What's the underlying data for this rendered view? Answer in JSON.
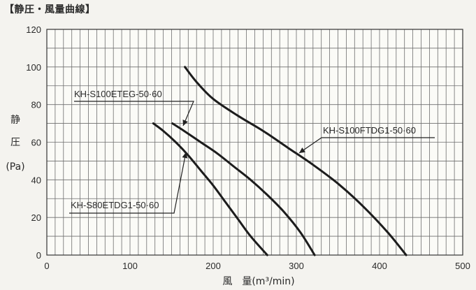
{
  "chart_data": {
    "type": "line",
    "title": "【静圧・風量曲線】",
    "xlabel": "風　量(m³/min)",
    "ylabel_lines": [
      "静",
      "圧",
      "(Pa)"
    ],
    "xlim": [
      0,
      500
    ],
    "ylim": [
      0,
      120
    ],
    "x_ticks": [
      0,
      100,
      200,
      300,
      400,
      500
    ],
    "y_ticks": [
      0,
      20,
      40,
      60,
      80,
      100,
      120
    ],
    "grid": true,
    "series": [
      {
        "name": "KH-S100FTDG1-50·60",
        "points": [
          [
            166,
            100
          ],
          [
            180,
            92
          ],
          [
            200,
            83
          ],
          [
            230,
            74
          ],
          [
            260,
            66
          ],
          [
            290,
            57
          ],
          [
            320,
            48
          ],
          [
            350,
            38
          ],
          [
            380,
            26
          ],
          [
            410,
            12
          ],
          [
            432,
            0
          ]
        ]
      },
      {
        "name": "KH-S100ETEG-50·60",
        "points": [
          [
            151,
            70
          ],
          [
            165,
            66
          ],
          [
            185,
            60
          ],
          [
            205,
            54
          ],
          [
            225,
            47
          ],
          [
            245,
            40
          ],
          [
            265,
            32
          ],
          [
            285,
            23
          ],
          [
            305,
            12
          ],
          [
            322,
            0
          ]
        ]
      },
      {
        "name": "KH-S80ETDG1-50·60",
        "points": [
          [
            128,
            70
          ],
          [
            140,
            66
          ],
          [
            155,
            60
          ],
          [
            170,
            53
          ],
          [
            185,
            45
          ],
          [
            200,
            37
          ],
          [
            215,
            28
          ],
          [
            230,
            19
          ],
          [
            245,
            10
          ],
          [
            265,
            0
          ]
        ]
      }
    ]
  }
}
